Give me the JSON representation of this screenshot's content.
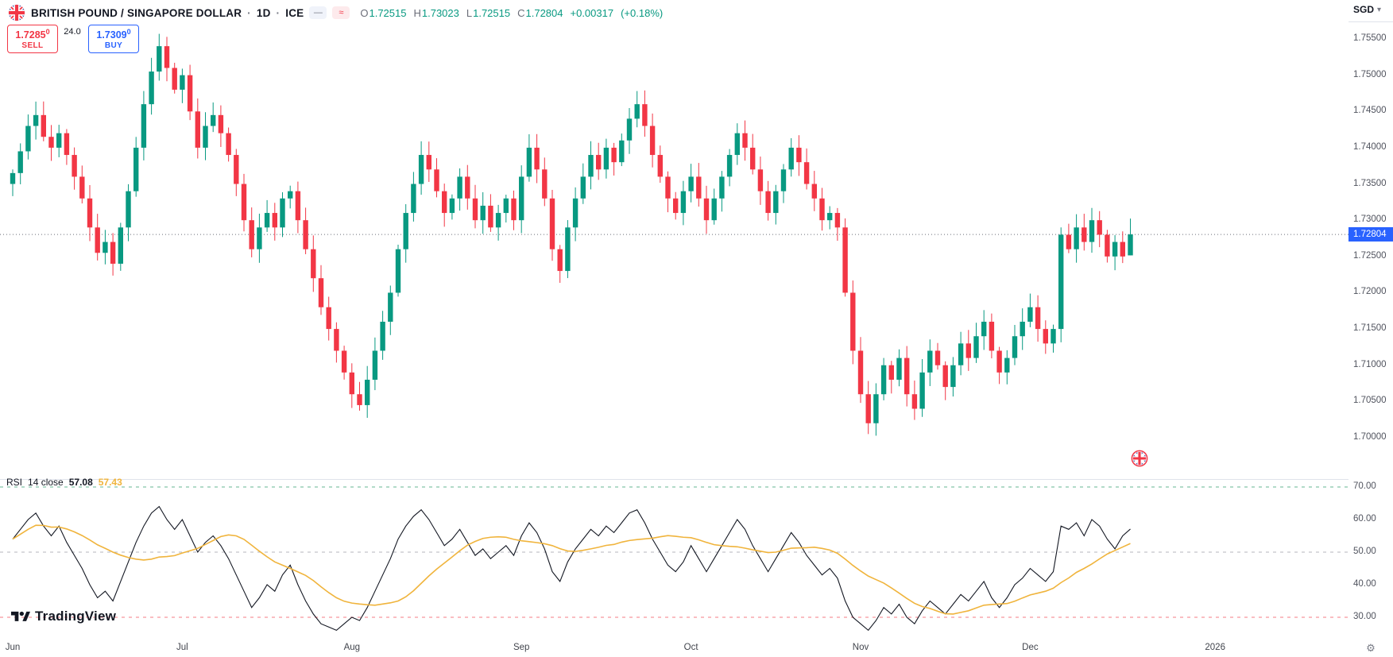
{
  "header": {
    "symbol": "BRITISH POUND / SINGAPORE DOLLAR",
    "dot": "·",
    "interval": "1D",
    "exchange": "ICE",
    "ohlc": {
      "o_label": "O",
      "o": "1.72515",
      "h_label": "H",
      "h": "1.73023",
      "l_label": "L",
      "l": "1.72515",
      "c_label": "C",
      "c": "1.72804",
      "change": "+0.00317",
      "change_pct": "(+0.18%)"
    }
  },
  "trade_panel": {
    "sell": {
      "price": "1.7285",
      "sup": "0",
      "label": "SELL"
    },
    "spread": "24.0",
    "buy": {
      "price": "1.7309",
      "sup": "0",
      "label": "BUY"
    }
  },
  "price_axis": {
    "currency": "SGD",
    "labels": [
      "1.75500",
      "1.75000",
      "1.74500",
      "1.74000",
      "1.73500",
      "1.73000",
      "1.72500",
      "1.72000",
      "1.71500",
      "1.71000",
      "1.70500",
      "1.70000"
    ],
    "current": "1.72804"
  },
  "rsi_axis": {
    "labels": [
      "70.00",
      "60.00",
      "50.00",
      "40.00",
      "30.00"
    ]
  },
  "time_axis": {
    "months": [
      {
        "label": "Jun",
        "i": 0
      },
      {
        "label": "Jul",
        "i": 22
      },
      {
        "label": "Aug",
        "i": 44
      },
      {
        "label": "Sep",
        "i": 66
      },
      {
        "label": "Oct",
        "i": 88
      },
      {
        "label": "Nov",
        "i": 110
      },
      {
        "label": "Dec",
        "i": 132
      },
      {
        "label": "2026",
        "i": 156
      }
    ]
  },
  "rsi_legend": {
    "name": "RSI",
    "params": "14 close",
    "value": "57.08",
    "ma_value": "57.43"
  },
  "watermark": {
    "text": "TradingView"
  },
  "icons": {
    "chevron_down": "▾",
    "gear": "⚙",
    "dash": "—",
    "approx": "≈"
  },
  "colors": {
    "green": "#089981",
    "red": "#f23645",
    "blue": "#2962ff",
    "yellow": "#f0b43c",
    "text": "#131722",
    "muted": "#787b86",
    "grid": "#e0e3eb",
    "price_line": "#6a6d78",
    "rsi_line": "#131722",
    "level_green": "#33a06f",
    "level_red": "#f23645",
    "level_gray": "#9598a1"
  },
  "chart_data": {
    "type": "candlestick+rsi",
    "symbol": "GBP/SGD",
    "timeframe": "1D",
    "exchange": "ICE",
    "price_axis_range": [
      1.7,
      1.755
    ],
    "current_price": 1.72804,
    "last_candle_ohlc": [
      1.72515,
      1.73023,
      1.72515,
      1.72804
    ],
    "closes": [
      1.7365,
      1.7395,
      1.743,
      1.7445,
      1.7415,
      1.74,
      1.742,
      1.739,
      1.736,
      1.733,
      1.729,
      1.7255,
      1.727,
      1.724,
      1.729,
      1.734,
      1.74,
      1.746,
      1.7505,
      1.754,
      1.751,
      1.748,
      1.75,
      1.745,
      1.74,
      1.743,
      1.7445,
      1.742,
      1.739,
      1.735,
      1.73,
      1.726,
      1.729,
      1.731,
      1.729,
      1.733,
      1.734,
      1.73,
      1.726,
      1.722,
      1.718,
      1.715,
      1.712,
      1.709,
      1.706,
      1.7045,
      1.708,
      1.712,
      1.716,
      1.72,
      1.726,
      1.731,
      1.735,
      1.739,
      1.737,
      1.734,
      1.731,
      1.733,
      1.736,
      1.733,
      1.73,
      1.732,
      1.729,
      1.731,
      1.733,
      1.73,
      1.736,
      1.74,
      1.737,
      1.733,
      1.726,
      1.723,
      1.729,
      1.733,
      1.736,
      1.739,
      1.737,
      1.74,
      1.738,
      1.741,
      1.744,
      1.746,
      1.743,
      1.739,
      1.736,
      1.733,
      1.731,
      1.734,
      1.736,
      1.733,
      1.73,
      1.733,
      1.736,
      1.739,
      1.742,
      1.74,
      1.737,
      1.734,
      1.731,
      1.734,
      1.737,
      1.74,
      1.738,
      1.735,
      1.733,
      1.73,
      1.731,
      1.729,
      1.72,
      1.712,
      1.706,
      1.702,
      1.706,
      1.71,
      1.708,
      1.711,
      1.706,
      1.704,
      1.709,
      1.712,
      1.71,
      1.707,
      1.71,
      1.713,
      1.711,
      1.714,
      1.716,
      1.712,
      1.709,
      1.711,
      1.714,
      1.716,
      1.718,
      1.715,
      1.713,
      1.715,
      1.728,
      1.726,
      1.729,
      1.727,
      1.73,
      1.728,
      1.725,
      1.727,
      1.725,
      1.72804
    ],
    "rsi": {
      "length": 14,
      "levels": [
        70,
        50,
        30
      ],
      "last": 57.08,
      "ma_last": 57.43,
      "values": [
        54,
        57,
        60,
        62,
        58,
        55,
        58,
        53,
        49,
        45,
        40,
        36,
        38,
        35,
        41,
        47,
        53,
        58,
        62,
        64,
        60,
        57,
        60,
        55,
        50,
        53,
        55,
        52,
        48,
        43,
        38,
        33,
        36,
        40,
        38,
        43,
        46,
        40,
        35,
        31,
        28,
        27,
        26,
        28,
        30,
        29,
        33,
        38,
        43,
        48,
        54,
        58,
        61,
        63,
        60,
        56,
        52,
        54,
        57,
        53,
        49,
        51,
        48,
        50,
        52,
        49,
        55,
        59,
        56,
        51,
        44,
        41,
        47,
        51,
        54,
        57,
        55,
        58,
        56,
        59,
        62,
        63,
        59,
        54,
        50,
        46,
        44,
        47,
        52,
        48,
        44,
        48,
        52,
        56,
        60,
        57,
        52,
        48,
        44,
        48,
        52,
        56,
        53,
        49,
        46,
        43,
        45,
        42,
        35,
        30,
        28,
        26,
        29,
        33,
        31,
        34,
        30,
        28,
        32,
        35,
        33,
        31,
        34,
        37,
        35,
        38,
        41,
        36,
        33,
        36,
        40,
        42,
        45,
        43,
        41,
        44,
        58,
        57,
        59,
        55,
        60,
        58,
        54,
        51,
        55,
        57.08
      ]
    }
  }
}
